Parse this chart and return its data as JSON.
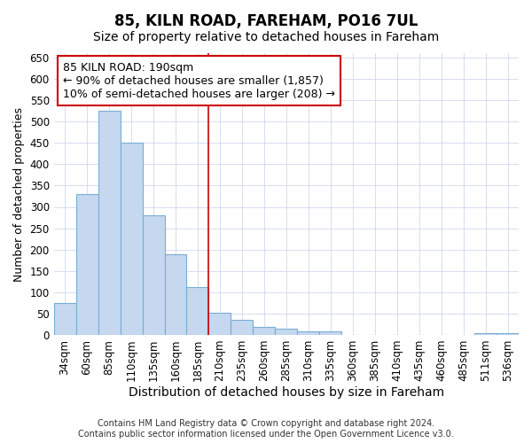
{
  "title": "85, KILN ROAD, FAREHAM, PO16 7UL",
  "subtitle": "Size of property relative to detached houses in Fareham",
  "xlabel": "Distribution of detached houses by size in Fareham",
  "ylabel": "Number of detached properties",
  "categories": [
    "34sqm",
    "60sqm",
    "85sqm",
    "110sqm",
    "135sqm",
    "160sqm",
    "185sqm",
    "210sqm",
    "235sqm",
    "260sqm",
    "285sqm",
    "310sqm",
    "335sqm",
    "360sqm",
    "385sqm",
    "410sqm",
    "435sqm",
    "460sqm",
    "485sqm",
    "511sqm",
    "536sqm"
  ],
  "values": [
    75,
    330,
    525,
    450,
    280,
    188,
    113,
    52,
    36,
    19,
    14,
    8,
    8,
    0,
    0,
    0,
    0,
    0,
    0,
    5,
    5
  ],
  "bar_color": "#c5d8ef",
  "bar_edge_color": "#7aadd4",
  "vline_x_index": 6.5,
  "vline_color": "#cc0000",
  "annotation_text": "85 KILN ROAD: 190sqm\n← 90% of detached houses are smaller (1,857)\n10% of semi-detached houses are larger (208) →",
  "annotation_box_color": "#ffffff",
  "annotation_box_edge": "#cc0000",
  "ylim": [
    0,
    660
  ],
  "yticks": [
    0,
    50,
    100,
    150,
    200,
    250,
    300,
    350,
    400,
    450,
    500,
    550,
    600,
    650
  ],
  "footer_line1": "Contains HM Land Registry data © Crown copyright and database right 2024.",
  "footer_line2": "Contains public sector information licensed under the Open Government Licence v3.0.",
  "bg_color": "#ffffff",
  "plot_bg_color": "#ffffff",
  "title_fontsize": 12,
  "subtitle_fontsize": 10,
  "xlabel_fontsize": 10,
  "ylabel_fontsize": 9,
  "tick_fontsize": 8.5,
  "footer_fontsize": 7,
  "annotation_fontsize": 9
}
